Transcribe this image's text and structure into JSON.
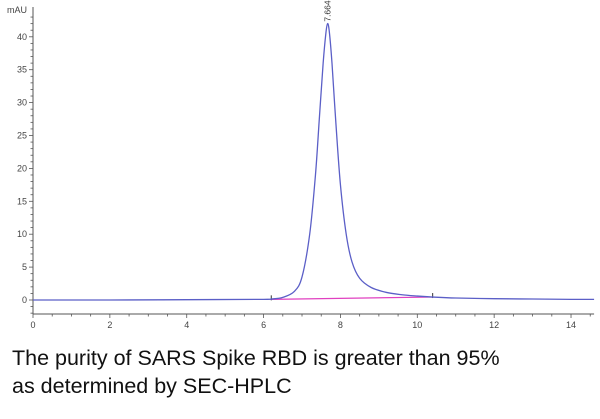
{
  "chart_data": {
    "type": "line",
    "title": "",
    "xlabel": "",
    "ylabel": "mAU",
    "xlim": [
      0,
      14.6
    ],
    "ylim": [
      -2.2,
      43.5
    ],
    "grid": false,
    "x_ticks": [
      0,
      2,
      4,
      6,
      8,
      10,
      12,
      14
    ],
    "y_ticks": [
      0,
      5,
      10,
      15,
      20,
      25,
      30,
      35,
      40
    ],
    "series": [
      {
        "name": "SEC-HPLC chromatogram",
        "color": "#5b5fc7",
        "x": [
          0.0,
          2.0,
          4.0,
          6.0,
          6.2,
          6.5,
          6.8,
          7.0,
          7.2,
          7.35,
          7.45,
          7.55,
          7.62,
          7.664,
          7.71,
          7.78,
          7.88,
          8.0,
          8.15,
          8.3,
          8.5,
          8.8,
          9.2,
          9.6,
          10.0,
          10.4,
          11.0,
          12.0,
          13.0,
          14.0,
          14.6
        ],
        "y": [
          0.0,
          0.0,
          0.05,
          0.1,
          0.15,
          0.4,
          1.3,
          3.5,
          10.0,
          19.0,
          27.5,
          36.0,
          40.5,
          42.0,
          40.8,
          36.0,
          27.0,
          17.5,
          10.0,
          5.8,
          3.3,
          1.9,
          1.15,
          0.8,
          0.6,
          0.45,
          0.3,
          0.2,
          0.15,
          0.1,
          0.1
        ]
      },
      {
        "name": "Integration baseline",
        "color": "#e040c0",
        "x": [
          6.2,
          10.4
        ],
        "y": [
          0.1,
          0.45
        ]
      }
    ],
    "annotations": [
      {
        "text": "7.664",
        "x": 7.664,
        "y": 42.0,
        "rotation": -90,
        "type": "peak-retention-time"
      }
    ],
    "baseline_markers": [
      6.2,
      10.4
    ]
  },
  "caption": {
    "line1": "The purity of SARS Spike RBD is greater than 95%",
    "line2": "as determined by SEC-HPLC"
  }
}
